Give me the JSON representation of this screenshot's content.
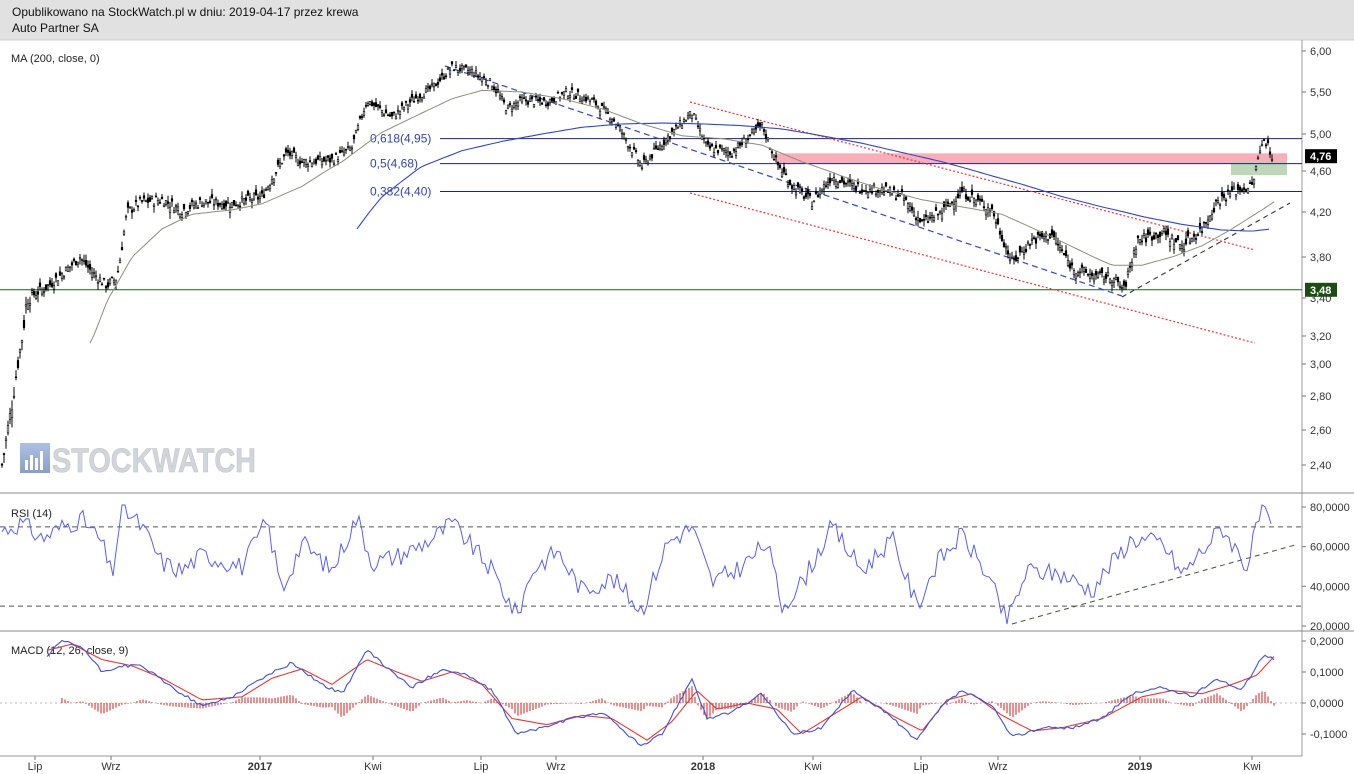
{
  "header": {
    "published": "Opublikowano na StockWatch.pl w dniu: 2019-04-17 przez krewa",
    "company": "Auto Partner SA"
  },
  "watermark": "STOCKWATCH",
  "colors": {
    "candle": "#000000",
    "ma": "#3344cc",
    "fib_line": "#1a237e",
    "channel": "#e53935",
    "support": "#1b5e20",
    "zone_red": "#f8a5b0",
    "zone_green": "#b6d3b0",
    "rsi": "#5a5ff0",
    "macd": "#3f51d5",
    "signal": "#e53935",
    "hist": "#cc2222",
    "last_price_bg": "#000000",
    "support_label_bg": "#1b4d12"
  },
  "chart_data": [
    {
      "type": "candlestick",
      "title": "MA (200, close, 0)",
      "y_ticks": [
        "6,00",
        "5,50",
        "5,00",
        "4,60",
        "4,20",
        "3,80",
        "3,40",
        "3,20",
        "3,00",
        "2,80",
        "2,60",
        "2,40"
      ],
      "x_ticks": [
        "Lip",
        "Wrz",
        "2017",
        "Kwi",
        "Lip",
        "Wrz",
        "2018",
        "Kwi",
        "Lip",
        "Wrz",
        "2019",
        "Kwi"
      ],
      "ylim": [
        2.3,
        6.05
      ],
      "last_price": "4,76",
      "support_price": "3,48",
      "fib_levels": [
        {
          "label": "0,618(4,95)",
          "value": 4.95
        },
        {
          "label": "0,5(4,68)",
          "value": 4.68
        },
        {
          "label": "0,382(4,40)",
          "value": 4.4
        }
      ],
      "support_value": 3.48,
      "resistance_zone": [
        4.68,
        4.78
      ],
      "support_zone": [
        4.56,
        4.7
      ],
      "close_anchors": [
        [
          0,
          2.4
        ],
        [
          10,
          2.75
        ],
        [
          25,
          3.4
        ],
        [
          40,
          3.48
        ],
        [
          50,
          3.55
        ],
        [
          65,
          3.68
        ],
        [
          78,
          3.8
        ],
        [
          90,
          3.65
        ],
        [
          105,
          3.52
        ],
        [
          115,
          3.6
        ],
        [
          125,
          4.2
        ],
        [
          140,
          4.3
        ],
        [
          160,
          4.32
        ],
        [
          180,
          4.22
        ],
        [
          200,
          4.3
        ],
        [
          230,
          4.28
        ],
        [
          260,
          4.35
        ],
        [
          285,
          4.8
        ],
        [
          300,
          4.7
        ],
        [
          330,
          4.72
        ],
        [
          350,
          4.85
        ],
        [
          365,
          5.4
        ],
        [
          390,
          5.2
        ],
        [
          410,
          5.4
        ],
        [
          430,
          5.55
        ],
        [
          450,
          5.8
        ],
        [
          470,
          5.75
        ],
        [
          490,
          5.6
        ],
        [
          505,
          5.3
        ],
        [
          520,
          5.4
        ],
        [
          545,
          5.38
        ],
        [
          565,
          5.5
        ],
        [
          590,
          5.4
        ],
        [
          610,
          5.2
        ],
        [
          640,
          4.65
        ],
        [
          660,
          4.9
        ],
        [
          690,
          5.25
        ],
        [
          705,
          4.85
        ],
        [
          730,
          4.8
        ],
        [
          760,
          5.1
        ],
        [
          775,
          4.68
        ],
        [
          790,
          4.46
        ],
        [
          810,
          4.3
        ],
        [
          830,
          4.55
        ],
        [
          850,
          4.45
        ],
        [
          880,
          4.42
        ],
        [
          900,
          4.35
        ],
        [
          920,
          4.1
        ],
        [
          940,
          4.2
        ],
        [
          960,
          4.4
        ],
        [
          990,
          4.22
        ],
        [
          1010,
          3.75
        ],
        [
          1030,
          3.95
        ],
        [
          1050,
          4.0
        ],
        [
          1070,
          3.7
        ],
        [
          1090,
          3.62
        ],
        [
          1110,
          3.6
        ],
        [
          1122,
          3.48
        ],
        [
          1135,
          3.95
        ],
        [
          1160,
          4.02
        ],
        [
          1180,
          3.9
        ],
        [
          1200,
          4.05
        ],
        [
          1215,
          4.3
        ],
        [
          1230,
          4.4
        ],
        [
          1250,
          4.45
        ],
        [
          1262,
          4.98
        ],
        [
          1270,
          4.76
        ]
      ],
      "ma_anchors": [
        [
          355,
          4.05
        ],
        [
          380,
          4.35
        ],
        [
          420,
          4.65
        ],
        [
          460,
          4.82
        ],
        [
          500,
          4.92
        ],
        [
          540,
          5.0
        ],
        [
          580,
          5.08
        ],
        [
          620,
          5.12
        ],
        [
          660,
          5.13
        ],
        [
          700,
          5.12
        ],
        [
          740,
          5.1
        ],
        [
          780,
          5.06
        ],
        [
          820,
          4.98
        ],
        [
          860,
          4.9
        ],
        [
          900,
          4.8
        ],
        [
          940,
          4.7
        ],
        [
          980,
          4.58
        ],
        [
          1020,
          4.47
        ],
        [
          1060,
          4.35
        ],
        [
          1100,
          4.25
        ],
        [
          1140,
          4.16
        ],
        [
          1180,
          4.09
        ],
        [
          1220,
          4.04
        ],
        [
          1250,
          4.03
        ],
        [
          1270,
          4.05
        ]
      ],
      "ma_short_anchors": [
        [
          88,
          3.15
        ],
        [
          110,
          3.45
        ],
        [
          130,
          3.8
        ],
        [
          160,
          4.05
        ],
        [
          190,
          4.18
        ],
        [
          230,
          4.22
        ],
        [
          260,
          4.28
        ],
        [
          300,
          4.45
        ],
        [
          340,
          4.7
        ],
        [
          380,
          5.02
        ],
        [
          420,
          5.25
        ],
        [
          450,
          5.42
        ],
        [
          480,
          5.52
        ],
        [
          520,
          5.5
        ],
        [
          560,
          5.42
        ],
        [
          600,
          5.3
        ],
        [
          640,
          5.12
        ],
        [
          680,
          4.98
        ],
        [
          720,
          4.95
        ],
        [
          760,
          4.88
        ],
        [
          800,
          4.7
        ],
        [
          840,
          4.55
        ],
        [
          880,
          4.42
        ],
        [
          920,
          4.32
        ],
        [
          960,
          4.25
        ],
        [
          1000,
          4.18
        ],
        [
          1040,
          4.02
        ],
        [
          1080,
          3.85
        ],
        [
          1110,
          3.72
        ],
        [
          1140,
          3.72
        ],
        [
          1170,
          3.8
        ],
        [
          1200,
          3.9
        ],
        [
          1230,
          4.05
        ],
        [
          1260,
          4.22
        ],
        [
          1272,
          4.3
        ]
      ]
    },
    {
      "type": "line",
      "title": "RSI (14)",
      "y_ticks": [
        "80,0000",
        "60,0000",
        "40,0000",
        "20,0000"
      ],
      "ylim": [
        20,
        85
      ],
      "levels": [
        70,
        30
      ],
      "anchors": [
        [
          0,
          68
        ],
        [
          20,
          72
        ],
        [
          40,
          64
        ],
        [
          60,
          70
        ],
        [
          80,
          74
        ],
        [
          100,
          62
        ],
        [
          110,
          45
        ],
        [
          120,
          80
        ],
        [
          140,
          70
        ],
        [
          160,
          52
        ],
        [
          180,
          48
        ],
        [
          200,
          56
        ],
        [
          240,
          50
        ],
        [
          265,
          73
        ],
        [
          280,
          38
        ],
        [
          300,
          62
        ],
        [
          330,
          48
        ],
        [
          355,
          75
        ],
        [
          370,
          52
        ],
        [
          400,
          56
        ],
        [
          430,
          64
        ],
        [
          450,
          72
        ],
        [
          470,
          60
        ],
        [
          490,
          48
        ],
        [
          515,
          25
        ],
        [
          530,
          48
        ],
        [
          555,
          58
        ],
        [
          580,
          38
        ],
        [
          610,
          44
        ],
        [
          640,
          28
        ],
        [
          665,
          62
        ],
        [
          690,
          70
        ],
        [
          710,
          42
        ],
        [
          740,
          50
        ],
        [
          765,
          62
        ],
        [
          780,
          30
        ],
        [
          800,
          42
        ],
        [
          830,
          70
        ],
        [
          860,
          48
        ],
        [
          890,
          64
        ],
        [
          915,
          30
        ],
        [
          935,
          52
        ],
        [
          960,
          66
        ],
        [
          985,
          46
        ],
        [
          1005,
          22
        ],
        [
          1025,
          48
        ],
        [
          1060,
          46
        ],
        [
          1090,
          38
        ],
        [
          1110,
          52
        ],
        [
          1130,
          64
        ],
        [
          1160,
          62
        ],
        [
          1180,
          46
        ],
        [
          1200,
          58
        ],
        [
          1220,
          70
        ],
        [
          1245,
          50
        ],
        [
          1260,
          80
        ],
        [
          1270,
          66
        ]
      ]
    },
    {
      "type": "line",
      "title": "MACD (12, 26, close, 9)",
      "y_ticks": [
        "0,2000",
        "0,1000",
        "0,0000",
        "-0,1000"
      ],
      "ylim": [
        -0.16,
        0.22
      ],
      "macd_anchors": [
        [
          45,
          0.15
        ],
        [
          60,
          0.2
        ],
        [
          80,
          0.18
        ],
        [
          100,
          0.1
        ],
        [
          120,
          0.12
        ],
        [
          140,
          0.12
        ],
        [
          170,
          0.05
        ],
        [
          200,
          -0.01
        ],
        [
          230,
          0.02
        ],
        [
          260,
          0.08
        ],
        [
          290,
          0.13
        ],
        [
          320,
          0.06
        ],
        [
          340,
          0.03
        ],
        [
          365,
          0.17
        ],
        [
          390,
          0.1
        ],
        [
          410,
          0.05
        ],
        [
          440,
          0.11
        ],
        [
          465,
          0.09
        ],
        [
          490,
          0.04
        ],
        [
          515,
          -0.1
        ],
        [
          540,
          -0.08
        ],
        [
          570,
          -0.05
        ],
        [
          600,
          -0.03
        ],
        [
          640,
          -0.14
        ],
        [
          660,
          -0.1
        ],
        [
          690,
          0.08
        ],
        [
          705,
          -0.05
        ],
        [
          730,
          -0.03
        ],
        [
          760,
          0.03
        ],
        [
          790,
          -0.1
        ],
        [
          820,
          -0.08
        ],
        [
          850,
          0.04
        ],
        [
          880,
          -0.02
        ],
        [
          915,
          -0.12
        ],
        [
          940,
          -0.01
        ],
        [
          960,
          0.04
        ],
        [
          990,
          -0.01
        ],
        [
          1010,
          -0.11
        ],
        [
          1040,
          -0.08
        ],
        [
          1070,
          -0.08
        ],
        [
          1100,
          -0.05
        ],
        [
          1130,
          0.03
        ],
        [
          1160,
          0.05
        ],
        [
          1190,
          0.02
        ],
        [
          1215,
          0.08
        ],
        [
          1240,
          0.04
        ],
        [
          1262,
          0.16
        ],
        [
          1272,
          0.14
        ]
      ],
      "signal_anchors": [
        [
          45,
          0.17
        ],
        [
          70,
          0.19
        ],
        [
          100,
          0.14
        ],
        [
          130,
          0.12
        ],
        [
          160,
          0.08
        ],
        [
          200,
          0.01
        ],
        [
          240,
          0.02
        ],
        [
          270,
          0.08
        ],
        [
          300,
          0.11
        ],
        [
          330,
          0.06
        ],
        [
          365,
          0.14
        ],
        [
          395,
          0.1
        ],
        [
          420,
          0.07
        ],
        [
          450,
          0.1
        ],
        [
          480,
          0.06
        ],
        [
          510,
          -0.05
        ],
        [
          545,
          -0.07
        ],
        [
          580,
          -0.04
        ],
        [
          610,
          -0.05
        ],
        [
          645,
          -0.12
        ],
        [
          670,
          -0.06
        ],
        [
          695,
          0.04
        ],
        [
          715,
          -0.02
        ],
        [
          745,
          0.0
        ],
        [
          775,
          -0.02
        ],
        [
          800,
          -0.1
        ],
        [
          830,
          -0.04
        ],
        [
          860,
          0.02
        ],
        [
          890,
          -0.04
        ],
        [
          920,
          -0.09
        ],
        [
          945,
          0.01
        ],
        [
          970,
          0.03
        ],
        [
          1000,
          -0.04
        ],
        [
          1030,
          -0.09
        ],
        [
          1060,
          -0.08
        ],
        [
          1100,
          -0.05
        ],
        [
          1140,
          0.02
        ],
        [
          1170,
          0.04
        ],
        [
          1200,
          0.03
        ],
        [
          1230,
          0.06
        ],
        [
          1255,
          0.09
        ],
        [
          1272,
          0.15
        ]
      ]
    }
  ]
}
